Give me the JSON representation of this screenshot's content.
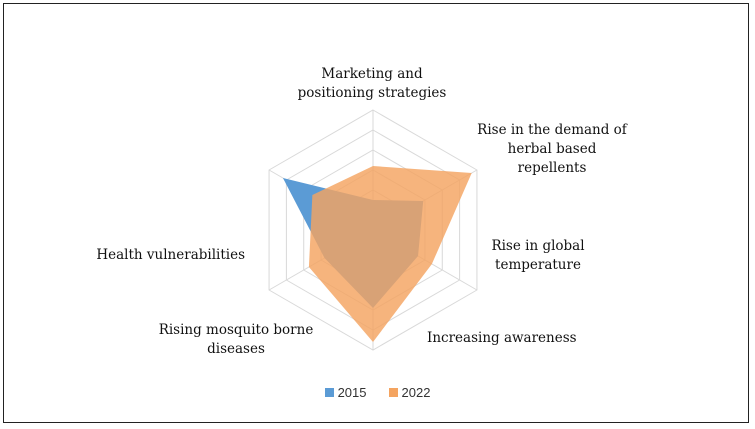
{
  "chart_data": {
    "type": "radar",
    "title": "",
    "categories": [
      [
        "Marketing and",
        "positioning strategies"
      ],
      [
        "Rise in the demand of",
        "herbal based",
        "repellents"
      ],
      [
        "Rise in global",
        "temperature"
      ],
      [
        "Increasing awareness"
      ],
      [
        "Rising mosquito borne",
        "diseases"
      ],
      [
        "Health vulnerabilities"
      ]
    ],
    "rmax": 6,
    "gridlines": 6,
    "series": [
      {
        "name": "2015",
        "color": "#5b9bd5",
        "values": [
          1.5,
          2.9,
          2.6,
          3.9,
          2.8,
          5.2
        ]
      },
      {
        "name": "2022",
        "color": "#f4a460",
        "values": [
          3.2,
          5.7,
          3.4,
          5.6,
          3.7,
          3.5
        ]
      }
    ],
    "legend_position": "bottom"
  }
}
